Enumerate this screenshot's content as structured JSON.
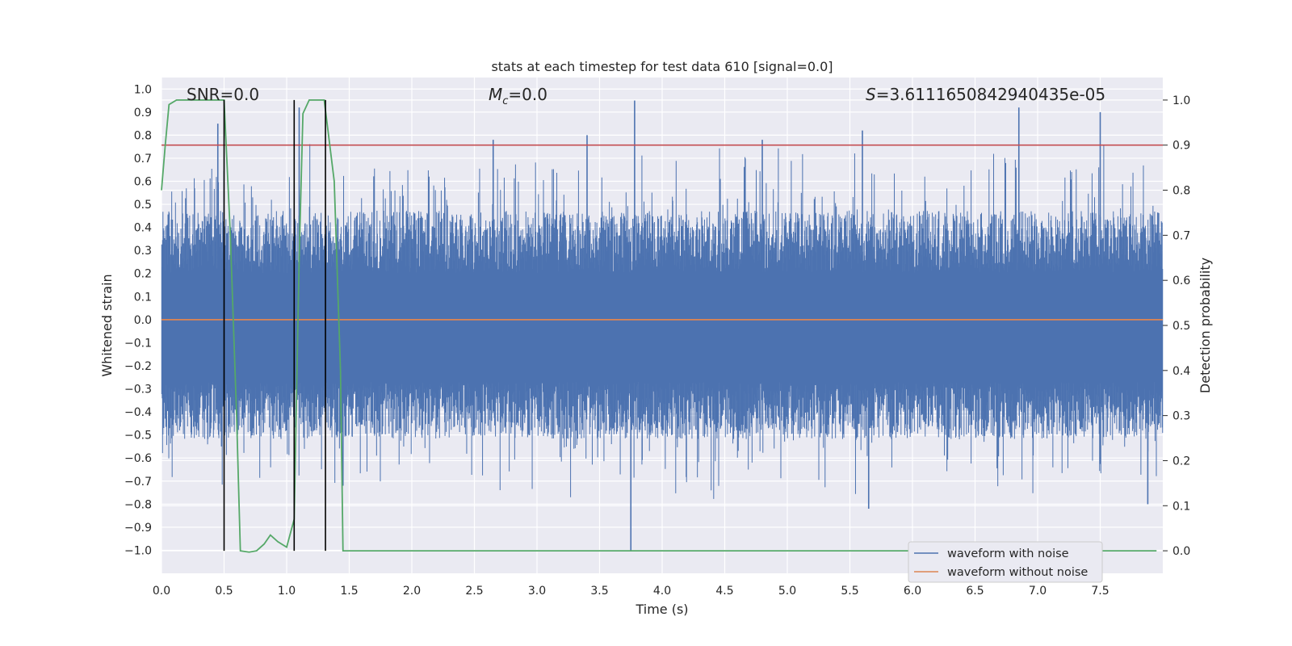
{
  "chart_data": {
    "type": "line",
    "title": "stats at each timestep for test data 610 [signal=0.0]",
    "xlabel": "Time (s)",
    "ylabel": "Whitened strain",
    "ylabel_right": "Detection probability",
    "xlim": [
      0.0,
      8.0
    ],
    "ylim": [
      -1.1,
      1.05
    ],
    "ylim_right": [
      -0.05,
      1.05
    ],
    "x_ticks": [
      0.0,
      0.5,
      1.0,
      1.5,
      2.0,
      2.5,
      3.0,
      3.5,
      4.0,
      4.5,
      5.0,
      5.5,
      6.0,
      6.5,
      7.0,
      7.5
    ],
    "y_ticks": [
      -1.0,
      -0.9,
      -0.8,
      -0.7,
      -0.6,
      -0.5,
      -0.4,
      -0.3,
      -0.2,
      -0.1,
      0.0,
      0.1,
      0.2,
      0.3,
      0.4,
      0.5,
      0.6,
      0.7,
      0.8,
      0.9,
      1.0
    ],
    "y_ticks_right": [
      0.0,
      0.1,
      0.2,
      0.3,
      0.4,
      0.5,
      0.6,
      0.7,
      0.8,
      0.9,
      1.0
    ],
    "grid": true,
    "legend_position": "lower-right",
    "annotations": {
      "snr": "SNR=0.0",
      "mc_symbol": "M",
      "mc_sub": "c",
      "mc_value": "=0.0",
      "s_symbol": "S",
      "s_value": "=3.6111650842940435e-05"
    },
    "series": [
      {
        "name": "waveform with noise",
        "color": "#4c72b0",
        "description_kind": "noise",
        "envelope_typical_amplitude": 0.45,
        "peaks": [
          {
            "x": 0.45,
            "y": 0.85
          },
          {
            "x": 0.48,
            "y": -0.55
          },
          {
            "x": 1.1,
            "y": 0.92
          },
          {
            "x": 1.45,
            "y": -0.72
          },
          {
            "x": 2.65,
            "y": 0.78
          },
          {
            "x": 3.4,
            "y": 0.8
          },
          {
            "x": 3.75,
            "y": -1.0
          },
          {
            "x": 3.78,
            "y": 0.95
          },
          {
            "x": 4.8,
            "y": 0.78
          },
          {
            "x": 5.6,
            "y": 0.82
          },
          {
            "x": 5.65,
            "y": -0.82
          },
          {
            "x": 6.85,
            "y": 0.92
          },
          {
            "x": 7.5,
            "y": 0.9
          },
          {
            "x": 7.88,
            "y": -0.8
          }
        ]
      },
      {
        "name": "waveform without noise",
        "color": "#dd8452",
        "x": [
          0.0,
          8.0
        ],
        "y": [
          0.0,
          0.0
        ]
      },
      {
        "name": "",
        "axis": "right",
        "color": "#55a868",
        "x": [
          0.0,
          0.03,
          0.06,
          0.12,
          0.2,
          0.3,
          0.4,
          0.5,
          0.55,
          0.6,
          0.63,
          0.7,
          0.76,
          0.82,
          0.87,
          0.93,
          1.0,
          1.06,
          1.1,
          1.13,
          1.18,
          1.3,
          1.38,
          1.43,
          1.45,
          1.5,
          2.0,
          3.0,
          4.0,
          5.0,
          6.0,
          7.0,
          7.95
        ],
        "y": [
          0.8,
          0.9,
          0.99,
          1.0,
          1.0,
          1.0,
          1.0,
          1.0,
          0.7,
          0.3,
          0.0,
          -0.003,
          0.0,
          0.015,
          0.035,
          0.02,
          0.008,
          0.07,
          0.65,
          0.97,
          1.0,
          1.0,
          0.82,
          0.4,
          0.0,
          0.0,
          0.0,
          0.0,
          0.0,
          0.0,
          0.0,
          0.0,
          0.0
        ]
      }
    ],
    "threshold_line": {
      "axis": "right",
      "y": 0.9,
      "color": "#c44e52"
    },
    "vertical_markers": [
      {
        "x": 0.5,
        "y_top": 1.0,
        "y_bottom": 0.0
      },
      {
        "x": 1.06,
        "y_top": 1.0,
        "y_bottom": 0.0
      },
      {
        "x": 1.31,
        "y_top": 1.0,
        "y_bottom": 0.0
      }
    ]
  }
}
